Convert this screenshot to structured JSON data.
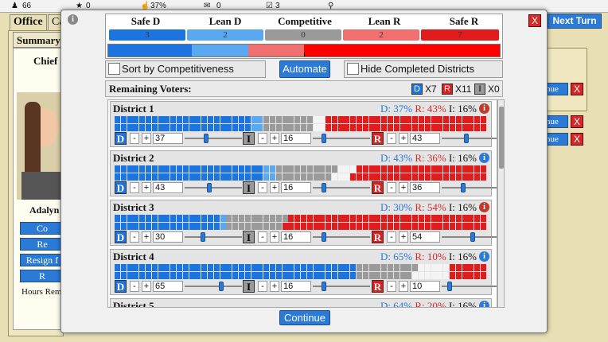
{
  "topbar": {
    "followers": "66",
    "stars": "0",
    "approval": "37%",
    "mail": "0",
    "tasks": "3"
  },
  "background": {
    "tab_office": "Office",
    "tab_campaign": "Ca",
    "tab_summary": "Summary",
    "chief_label": "Chief",
    "person_name": "Adalyn",
    "buttons": [
      "Co",
      "Re",
      "Resign f",
      "R"
    ],
    "hours_label": "Hours Rem",
    "next_turn": "Next Turn",
    "continue_partial": "inue"
  },
  "colors": {
    "safe_d": "#1c74e0",
    "lean_d": "#5aa8f0",
    "competitive": "#9a9a9a",
    "lean_r": "#f07070",
    "safe_r": "#e01c1c",
    "empty": "#f4f4f4"
  },
  "header": {
    "categories": [
      {
        "label": "Safe D",
        "count": "3"
      },
      {
        "label": "Lean D",
        "count": "2"
      },
      {
        "label": "Competitive",
        "count": "0"
      },
      {
        "label": "Lean R",
        "count": "2"
      },
      {
        "label": "Safe R",
        "count": "7"
      }
    ],
    "meter": {
      "safe_d_pct": 21.4,
      "lean_d_pct": 14.3,
      "lean_r_pct": 14.3,
      "safe_r_pct": 50
    }
  },
  "controls": {
    "sort_label": "Sort by Competitiveness",
    "automate_label": "Automate",
    "hide_label": "Hide Completed Districts"
  },
  "remaining": {
    "label": "Remaining Voters:",
    "d_badge": "D",
    "d_count": "X7",
    "r_badge": "R",
    "r_count": "X11",
    "i_badge": "I",
    "i_count": "X0"
  },
  "districts": [
    {
      "name": "District 1",
      "d": "D: 37%",
      "r": "R: 43%",
      "i": "I: 16%",
      "d_val": "37",
      "i_val": "16",
      "r_val": "43",
      "d_cells": 44,
      "ld_cells": 0,
      "ld_extra": 4,
      "i_cells": 16,
      "w_cells": 3,
      "r_cells": 52,
      "d_slider": 0.37,
      "i_slider": 0.16,
      "r_slider": 0.43
    },
    {
      "name": "District 2",
      "d": "D: 43%",
      "r": "R: 36%",
      "i": "I: 16%",
      "d_val": "43",
      "i_val": "16",
      "r_val": "36",
      "d_cells": 48,
      "ld_cells": 0,
      "ld_extra": 4,
      "i_cells": 19,
      "w_cells": 3,
      "r_cells": 43,
      "d_slider": 0.43,
      "i_slider": 0.16,
      "r_slider": 0.36
    },
    {
      "name": "District 3",
      "d": "D: 30%",
      "r": "R: 54%",
      "i": "I: 16%",
      "d_val": "30",
      "i_val": "16",
      "r_val": "54",
      "d_cells": 34,
      "ld_cells": 0,
      "ld_extra": 2,
      "i_cells": 19,
      "w_cells": 0,
      "r_cells": 65,
      "d_slider": 0.3,
      "i_slider": 0.16,
      "r_slider": 0.54
    },
    {
      "name": "District 4",
      "d": "D: 65%",
      "r": "R: 10%",
      "i": "I: 16%",
      "d_val": "65",
      "i_val": "16",
      "r_val": "10",
      "d_cells": 78,
      "ld_cells": 0,
      "ld_extra": 0,
      "i_cells": 19,
      "w_cells": 6,
      "r_cells": 12,
      "d_slider": 0.65,
      "i_slider": 0.16,
      "r_slider": 0.1
    },
    {
      "name": "District 5",
      "d": "D: 64%",
      "r": "R: 20%",
      "i": "I: 16%",
      "d_val": "64",
      "i_val": "16",
      "r_val": "20",
      "d_cells": 76,
      "ld_cells": 0,
      "ld_extra": 0,
      "i_cells": 19,
      "w_cells": 2,
      "r_cells": 23,
      "d_slider": 0.64,
      "i_slider": 0.16,
      "r_slider": 0.2
    }
  ],
  "continue_label": "Continue",
  "close_label": "X"
}
